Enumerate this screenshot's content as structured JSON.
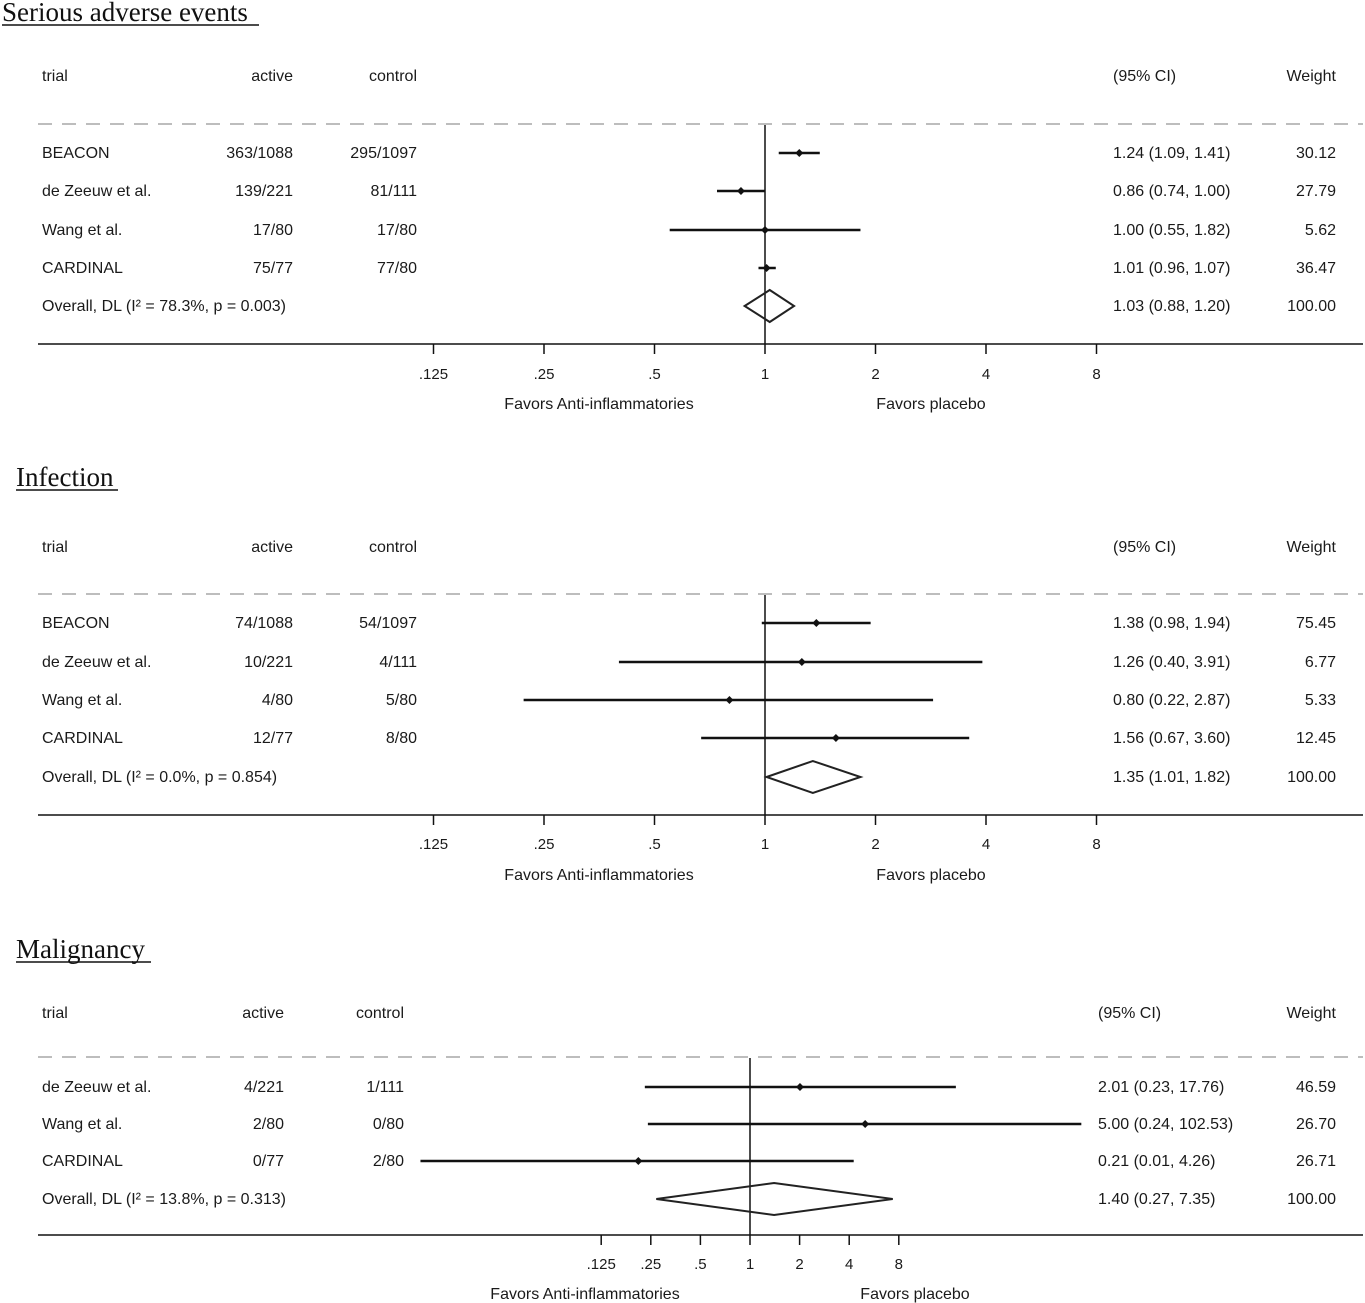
{
  "chart_data": [
    {
      "type": "forest",
      "title": "Serious adverse events",
      "columns": {
        "trial": "trial",
        "active": "active",
        "control": "control",
        "ci": "(95% CI)",
        "weight": "Weight"
      },
      "x_scale": "log2",
      "x_ticks": [
        ".125",
        ".25",
        ".5",
        "1",
        "2",
        "4",
        "8"
      ],
      "x_tick_values": [
        0.125,
        0.25,
        0.5,
        1,
        2,
        4,
        8
      ],
      "favors_left": "Favors Anti-inflammatories",
      "favors_right": "Favors placebo",
      "studies": [
        {
          "trial": "BEACON",
          "active": "363/1088",
          "control": "295/1097",
          "est": 1.24,
          "lo": 1.09,
          "hi": 1.41,
          "ci_text": "1.24 (1.09, 1.41)",
          "weight": "30.12"
        },
        {
          "trial": "de Zeeuw et al.",
          "active": "139/221",
          "control": "81/111",
          "est": 0.86,
          "lo": 0.74,
          "hi": 1.0,
          "ci_text": "0.86 (0.74, 1.00)",
          "weight": "27.79"
        },
        {
          "trial": "Wang et al.",
          "active": "17/80",
          "control": "17/80",
          "est": 1.0,
          "lo": 0.55,
          "hi": 1.82,
          "ci_text": "1.00 (0.55, 1.82)",
          "weight": "5.62"
        },
        {
          "trial": "CARDINAL",
          "active": "75/77",
          "control": "77/80",
          "est": 1.01,
          "lo": 0.96,
          "hi": 1.07,
          "ci_text": "1.01 (0.96, 1.07)",
          "weight": "36.47"
        }
      ],
      "overall": {
        "label": "Overall, DL (I² = 78.3%, p = 0.003)",
        "est": 1.03,
        "lo": 0.88,
        "hi": 1.2,
        "ci_text": "1.03 (0.88, 1.20)",
        "weight": "100.00"
      }
    },
    {
      "type": "forest",
      "title": "Infection",
      "columns": {
        "trial": "trial",
        "active": "active",
        "control": "control",
        "ci": "(95% CI)",
        "weight": "Weight"
      },
      "x_scale": "log2",
      "x_ticks": [
        ".125",
        ".25",
        ".5",
        "1",
        "2",
        "4",
        "8"
      ],
      "x_tick_values": [
        0.125,
        0.25,
        0.5,
        1,
        2,
        4,
        8
      ],
      "favors_left": "Favors Anti-inflammatories",
      "favors_right": "Favors placebo",
      "studies": [
        {
          "trial": "BEACON",
          "active": "74/1088",
          "control": "54/1097",
          "est": 1.38,
          "lo": 0.98,
          "hi": 1.94,
          "ci_text": "1.38 (0.98, 1.94)",
          "weight": "75.45"
        },
        {
          "trial": "de Zeeuw et al.",
          "active": "10/221",
          "control": "4/111",
          "est": 1.26,
          "lo": 0.4,
          "hi": 3.91,
          "ci_text": "1.26 (0.40, 3.91)",
          "weight": "6.77"
        },
        {
          "trial": "Wang et al.",
          "active": "4/80",
          "control": "5/80",
          "est": 0.8,
          "lo": 0.22,
          "hi": 2.87,
          "ci_text": "0.80 (0.22, 2.87)",
          "weight": "5.33"
        },
        {
          "trial": "CARDINAL",
          "active": "12/77",
          "control": "8/80",
          "est": 1.56,
          "lo": 0.67,
          "hi": 3.6,
          "ci_text": "1.56 (0.67, 3.60)",
          "weight": "12.45"
        }
      ],
      "overall": {
        "label": "Overall, DL (I² = 0.0%, p = 0.854)",
        "est": 1.35,
        "lo": 1.01,
        "hi": 1.82,
        "ci_text": "1.35 (1.01, 1.82)",
        "weight": "100.00"
      }
    },
    {
      "type": "forest",
      "title": "Malignancy",
      "columns": {
        "trial": "trial",
        "active": "active",
        "control": "control",
        "ci": "(95% CI)",
        "weight": "Weight"
      },
      "x_scale": "log2",
      "x_ticks": [
        ".125",
        ".25",
        ".5",
        "1",
        "2",
        "4",
        "8"
      ],
      "x_tick_values": [
        0.125,
        0.25,
        0.5,
        1,
        2,
        4,
        8
      ],
      "favors_left": "Favors Anti-inflammatories",
      "favors_right": "Favors placebo",
      "studies": [
        {
          "trial": "de Zeeuw et al.",
          "active": "4/221",
          "control": "1/111",
          "est": 2.01,
          "lo": 0.23,
          "hi": 17.76,
          "ci_text": "2.01 (0.23, 17.76)",
          "weight": "46.59"
        },
        {
          "trial": "Wang et al.",
          "active": "2/80",
          "control": "0/80",
          "est": 5.0,
          "lo": 0.24,
          "hi": 102.53,
          "ci_text": "5.00 (0.24, 102.53)",
          "weight": "26.70"
        },
        {
          "trial": "CARDINAL",
          "active": "0/77",
          "control": "2/80",
          "est": 0.21,
          "lo": 0.01,
          "hi": 4.26,
          "ci_text": "0.21 (0.01, 4.26)",
          "weight": "26.71"
        }
      ],
      "overall": {
        "label": "Overall, DL (I² = 13.8%, p = 0.313)",
        "est": 1.4,
        "lo": 0.27,
        "hi": 7.35,
        "ci_text": "1.40 (0.27, 7.35)",
        "weight": "100.00"
      }
    }
  ]
}
